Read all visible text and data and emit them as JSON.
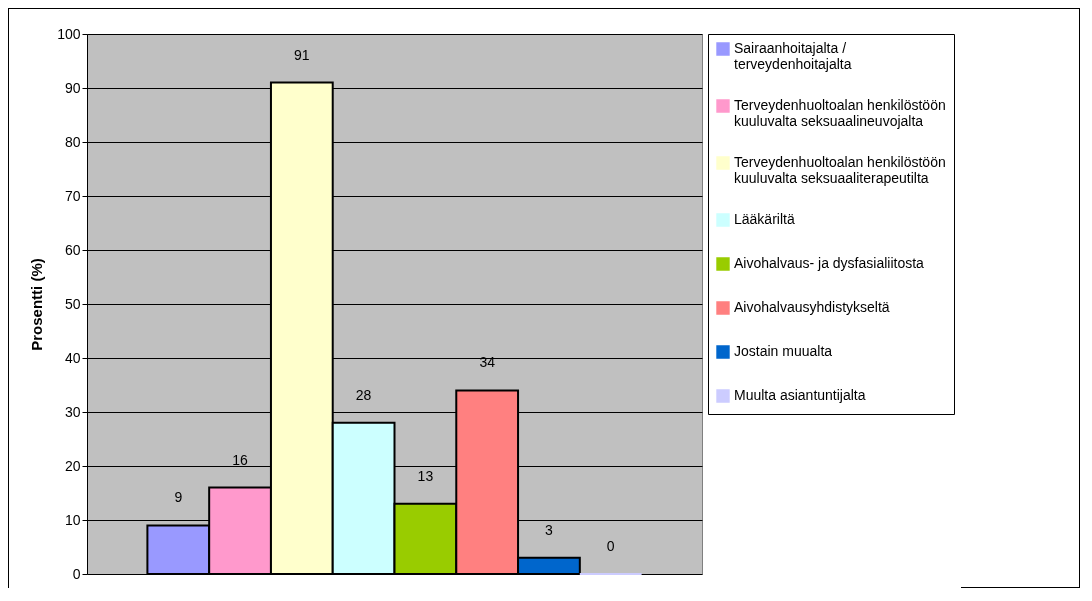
{
  "chart_data": {
    "type": "bar",
    "ylabel": "Prosentti (%)",
    "categories": [
      null
    ],
    "series": [
      {
        "name": "Sairaanhoitajalta / terveydenhoitajalta",
        "color": "#9999ff",
        "values": [
          9
        ]
      },
      {
        "name": "Terveydenhuoltoalan henkilöstöön kuuluvalta seksuaalineuvojalta",
        "color": "#ff99cc",
        "values": [
          16
        ]
      },
      {
        "name": "Terveydenhuoltoalan henkilöstöön kuuluvalta seksuaaliterapeutilta",
        "color": "#ffffcc",
        "values": [
          91
        ]
      },
      {
        "name": "Lääkäriltä",
        "color": "#ccffff",
        "values": [
          28
        ]
      },
      {
        "name": "Aivohalvaus- ja dysfasialiitosta",
        "color": "#99cc00",
        "values": [
          13
        ]
      },
      {
        "name": "Aivohalvausyhdistykseltä",
        "color": "#ff8080",
        "values": [
          34
        ]
      },
      {
        "name": "Jostain muualta",
        "color": "#0066cc",
        "values": [
          3
        ]
      },
      {
        "name": "Muulta asiantuntijalta",
        "color": "#ccccff",
        "values": [
          0
        ]
      }
    ],
    "ylim": [
      0,
      100
    ],
    "yticks": [
      0,
      10,
      20,
      30,
      40,
      50,
      60,
      70,
      80,
      90,
      100
    ],
    "grid": "y",
    "legend": "right",
    "data_labels": true
  }
}
